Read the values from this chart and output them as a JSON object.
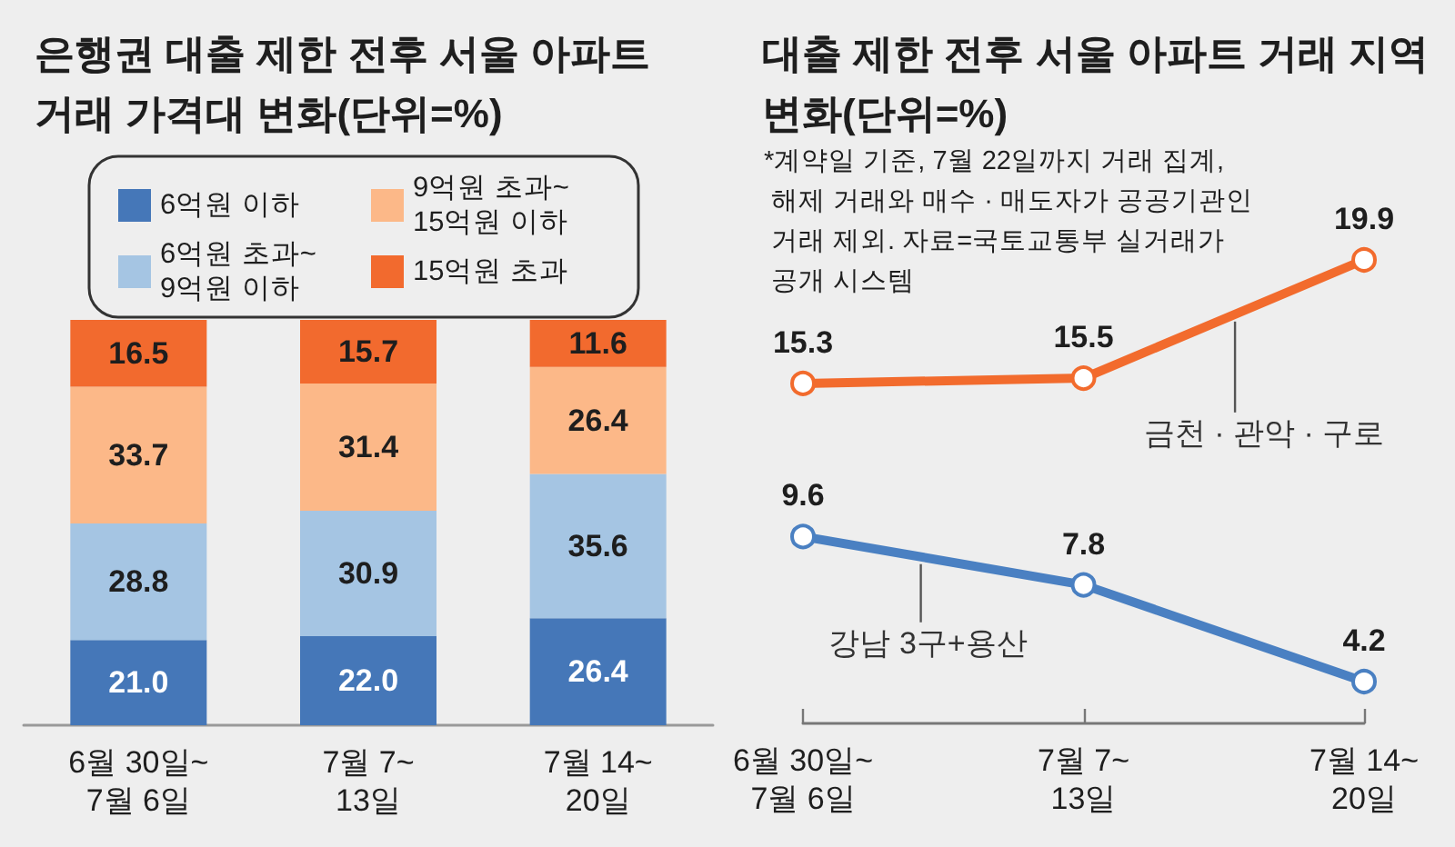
{
  "chart_data": [
    {
      "type": "bar",
      "title": "은행권 대출 제한 전후 서울 아파트\n거래 가격대 변화(단위=%)",
      "categories": [
        "6월 30일~\n7월 6일",
        "7월 7~\n13일",
        "7월 14~\n20일"
      ],
      "stacked": true,
      "ylim": [
        0,
        100
      ],
      "tick_labels": "x",
      "legend": "top",
      "series": [
        {
          "name": "6억원 이하",
          "color": "#4577b8",
          "values": [
            21.0,
            22.0,
            26.4
          ],
          "value_labels": [
            "21.0",
            "22.0",
            "26.4"
          ]
        },
        {
          "name": "6억원 초과~\n9억원 이하",
          "color": "#a5c5e3",
          "values": [
            28.8,
            30.9,
            35.6
          ],
          "value_labels": [
            "28.8",
            "30.9",
            "35.6"
          ]
        },
        {
          "name": "9억원 초과~\n15억원 이하",
          "color": "#fcb888",
          "values": [
            33.7,
            31.4,
            26.4
          ],
          "value_labels": [
            "33.7",
            "31.4",
            "26.4"
          ]
        },
        {
          "name": "15억원 초과",
          "color": "#f26a2e",
          "values": [
            16.5,
            15.7,
            11.6
          ],
          "value_labels": [
            "16.5",
            "15.7",
            "11.6"
          ]
        }
      ]
    },
    {
      "type": "line",
      "title": "대출 제한 전후 서울 아파트 거래 지역\n변화(단위=%)",
      "annotations": [
        "*계약일 기준, 7월 22일까지 거래 집계,\n 해제 거래와 매수 · 매도자가 공공기관인\n 거래 제외. 자료=국토교통부 실거래가\n 공개 시스템"
      ],
      "categories": [
        "6월 30일~\n7월 6일",
        "7월 7~\n13일",
        "7월 14~\n20일"
      ],
      "tick_labels": "x",
      "legend": false,
      "marker": "circle",
      "data_labels": true,
      "series": [
        {
          "name": "금천 · 관악 · 구로",
          "color": "#f26b2d",
          "values": [
            15.3,
            15.5,
            19.9
          ]
        },
        {
          "name": "강남 3구+용산",
          "color": "#4a80c2",
          "values": [
            9.6,
            7.8,
            4.2
          ]
        }
      ]
    }
  ]
}
